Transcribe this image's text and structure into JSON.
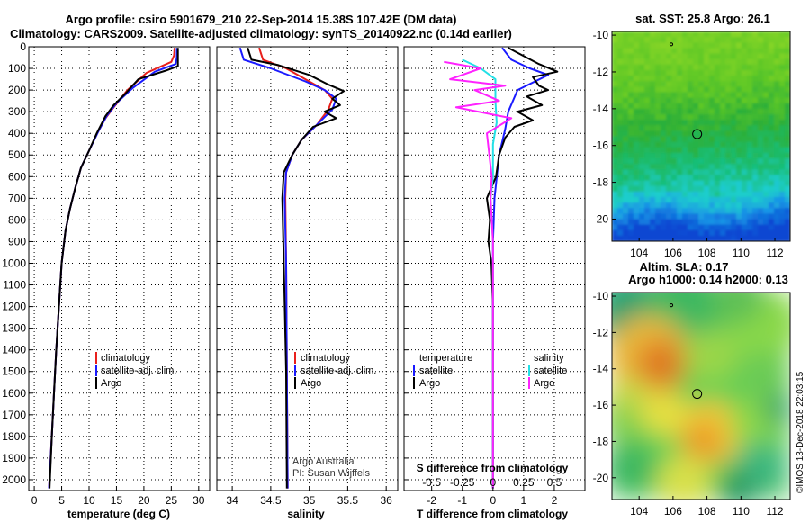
{
  "header": {
    "line1": "Argo profile: csiro 5901679_210 22-Sep-2014 15.38S 107.42E (DM data)",
    "line2": "Climatology: CARS2009. Satellite-adjusted climatology: synTS_20140922.nc (0.14d earlier)"
  },
  "credit": "©IMOS 13-Dec-2018 22:03:15",
  "colors": {
    "climatology": "#e8201c",
    "satellite": "#1a1aff",
    "argo": "#000000",
    "sat_salinity": "#22e0e6",
    "argo_salinity": "#ff22ff"
  },
  "chart_data": [
    {
      "id": "temperature",
      "type": "line",
      "xlabel": "temperature (deg C)",
      "ylabel": "",
      "xlim": [
        -1,
        32
      ],
      "ylim": [
        2050,
        0
      ],
      "xticks": [
        0,
        5,
        10,
        15,
        20,
        25,
        30
      ],
      "yticks": [
        0,
        100,
        200,
        300,
        400,
        500,
        600,
        700,
        800,
        900,
        1000,
        1100,
        1200,
        1300,
        1400,
        1500,
        1600,
        1700,
        1800,
        1900,
        2000
      ],
      "legend": [
        "climatology",
        "satellite-adj. clim.",
        "Argo"
      ],
      "series": [
        {
          "name": "climatology",
          "color": "#e8201c",
          "points": [
            [
              25.6,
              5
            ],
            [
              25.5,
              40
            ],
            [
              25,
              70
            ],
            [
              20.5,
              120
            ],
            [
              17,
              200
            ],
            [
              14.5,
              280
            ],
            [
              13,
              330
            ],
            [
              11.5,
              400
            ],
            [
              10,
              480
            ],
            [
              8.5,
              560
            ],
            [
              7.5,
              650
            ],
            [
              6.5,
              750
            ],
            [
              5.7,
              850
            ],
            [
              5,
              1000
            ],
            [
              4.5,
              1200
            ],
            [
              4,
              1400
            ],
            [
              3.6,
              1600
            ],
            [
              3.2,
              1800
            ],
            [
              2.7,
              2040
            ]
          ]
        },
        {
          "name": "satellite-adj. clim.",
          "color": "#1a1aff",
          "points": [
            [
              26,
              5
            ],
            [
              26,
              50
            ],
            [
              25.8,
              80
            ],
            [
              22,
              115
            ],
            [
              18,
              190
            ],
            [
              15,
              260
            ],
            [
              13.2,
              320
            ],
            [
              11.7,
              390
            ],
            [
              10,
              480
            ],
            [
              8.5,
              560
            ],
            [
              7.5,
              650
            ],
            [
              6.5,
              750
            ],
            [
              5.7,
              850
            ],
            [
              5,
              1000
            ],
            [
              4.5,
              1200
            ],
            [
              4,
              1400
            ],
            [
              3.6,
              1600
            ],
            [
              3.2,
              1800
            ],
            [
              2.7,
              2040
            ]
          ]
        },
        {
          "name": "Argo",
          "color": "#000000",
          "points": [
            [
              26.2,
              5
            ],
            [
              26.2,
              90
            ],
            [
              24,
              110
            ],
            [
              19,
              150
            ],
            [
              16.5,
              220
            ],
            [
              14.5,
              270
            ],
            [
              13,
              320
            ],
            [
              11.4,
              400
            ],
            [
              10,
              480
            ],
            [
              8.5,
              560
            ],
            [
              7.5,
              650
            ],
            [
              6.5,
              750
            ],
            [
              5.7,
              850
            ],
            [
              5,
              1000
            ],
            [
              4.5,
              1200
            ],
            [
              4,
              1400
            ],
            [
              3.6,
              1600
            ],
            [
              3.2,
              1800
            ],
            [
              2.8,
              2040
            ]
          ]
        }
      ]
    },
    {
      "id": "salinity",
      "type": "line",
      "xlabel": "salinity",
      "xlim": [
        33.8,
        36.15
      ],
      "ylim": [
        2050,
        0
      ],
      "xticks": [
        34,
        34.5,
        35,
        35.5,
        36
      ],
      "legend": [
        "climatology",
        "satellite-adj. clim.",
        "Argo"
      ],
      "annotation": [
        "Argo Australia",
        "PI: Susan Wijffels"
      ],
      "series": [
        {
          "name": "climatology",
          "color": "#e8201c",
          "points": [
            [
              34.35,
              5
            ],
            [
              34.4,
              60
            ],
            [
              34.7,
              100
            ],
            [
              35,
              160
            ],
            [
              35.2,
              200
            ],
            [
              35.3,
              240
            ],
            [
              35.25,
              290
            ],
            [
              35.1,
              360
            ],
            [
              34.9,
              430
            ],
            [
              34.78,
              500
            ],
            [
              34.7,
              580
            ],
            [
              34.69,
              700
            ],
            [
              34.7,
              1000
            ],
            [
              34.71,
              1500
            ],
            [
              34.72,
              2040
            ]
          ]
        },
        {
          "name": "satellite-adj. clim.",
          "color": "#1a1aff",
          "points": [
            [
              34.1,
              5
            ],
            [
              34.15,
              60
            ],
            [
              34.5,
              100
            ],
            [
              34.95,
              160
            ],
            [
              35.2,
              200
            ],
            [
              35.35,
              240
            ],
            [
              35.3,
              290
            ],
            [
              35.1,
              360
            ],
            [
              34.9,
              430
            ],
            [
              34.78,
              500
            ],
            [
              34.7,
              580
            ],
            [
              34.68,
              700
            ],
            [
              34.7,
              1000
            ],
            [
              34.71,
              1500
            ],
            [
              34.72,
              2040
            ]
          ]
        },
        {
          "name": "Argo",
          "color": "#000000",
          "points": [
            [
              34.2,
              5
            ],
            [
              34.25,
              60
            ],
            [
              34.6,
              85
            ],
            [
              35,
              130
            ],
            [
              35.25,
              175
            ],
            [
              35.45,
              205
            ],
            [
              35.3,
              240
            ],
            [
              35.4,
              270
            ],
            [
              35.2,
              300
            ],
            [
              35.35,
              330
            ],
            [
              35.05,
              370
            ],
            [
              34.9,
              430
            ],
            [
              34.78,
              500
            ],
            [
              34.67,
              580
            ],
            [
              34.65,
              700
            ],
            [
              34.67,
              1000
            ],
            [
              34.7,
              1500
            ],
            [
              34.71,
              2040
            ]
          ]
        }
      ]
    },
    {
      "id": "differences",
      "type": "line",
      "xlabel": "T difference from climatology",
      "xlabel_top": "S difference from climatology",
      "xlim": [
        -2.9,
        3.0
      ],
      "ylim": [
        2050,
        0
      ],
      "xticks": [
        -2,
        -1,
        0,
        1,
        2
      ],
      "xticks_s": [
        -0.5,
        -0.25,
        0,
        0.25,
        0.5
      ],
      "s_scale": 4,
      "legend_left_title": "temperature",
      "legend_right_title": "salinity",
      "legend": [
        "satellite",
        "Argo",
        "satellite",
        "Argo"
      ],
      "series": [
        {
          "name": "T satellite",
          "color": "#1a1aff",
          "var": "T",
          "points": [
            [
              0.3,
              5
            ],
            [
              0.6,
              60
            ],
            [
              1.2,
              100
            ],
            [
              1.8,
              130
            ],
            [
              0.8,
              200
            ],
            [
              0.5,
              300
            ],
            [
              0.4,
              380
            ],
            [
              0.2,
              500
            ],
            [
              0.05,
              700
            ],
            [
              0,
              900
            ],
            [
              0,
              1200
            ],
            [
              0,
              2040
            ]
          ]
        },
        {
          "name": "T Argo",
          "color": "#000000",
          "var": "T",
          "points": [
            [
              0.5,
              5
            ],
            [
              1.5,
              80
            ],
            [
              2.1,
              115
            ],
            [
              1.3,
              140
            ],
            [
              1.5,
              180
            ],
            [
              1.8,
              200
            ],
            [
              1.1,
              230
            ],
            [
              1.6,
              270
            ],
            [
              0.8,
              300
            ],
            [
              1.3,
              340
            ],
            [
              0.7,
              370
            ],
            [
              0.4,
              420
            ],
            [
              0.2,
              500
            ],
            [
              0.1,
              600
            ],
            [
              -0.2,
              700
            ],
            [
              -0.1,
              800
            ],
            [
              -0.15,
              900
            ],
            [
              -0.05,
              1000
            ],
            [
              0,
              1200
            ],
            [
              0,
              2040
            ]
          ]
        },
        {
          "name": "S satellite",
          "color": "#22e0e6",
          "var": "S",
          "points": [
            [
              -0.25,
              60
            ],
            [
              -0.1,
              100
            ],
            [
              0.02,
              150
            ],
            [
              0.02,
              250
            ],
            [
              0.03,
              350
            ],
            [
              0,
              450
            ],
            [
              0,
              600
            ],
            [
              -0.02,
              700
            ],
            [
              0,
              900
            ],
            [
              0,
              1200
            ],
            [
              0,
              2040
            ]
          ]
        },
        {
          "name": "S Argo",
          "color": "#ff22ff",
          "var": "S",
          "points": [
            [
              -0.4,
              70
            ],
            [
              -0.1,
              100
            ],
            [
              -0.35,
              150
            ],
            [
              0.1,
              180
            ],
            [
              -0.15,
              200
            ],
            [
              0.05,
              250
            ],
            [
              -0.3,
              280
            ],
            [
              0.15,
              330
            ],
            [
              -0.05,
              400
            ],
            [
              -0.03,
              500
            ],
            [
              -0.01,
              600
            ],
            [
              -0.02,
              700
            ],
            [
              0,
              900
            ],
            [
              0,
              1200
            ],
            [
              0,
              2040
            ]
          ]
        }
      ]
    },
    {
      "id": "sst-map",
      "type": "heatmap",
      "title": "sat. SST: 25.8 Argo: 26.1",
      "xlim": [
        102.4,
        112.9
      ],
      "ylim": [
        -21.2,
        -9.8
      ],
      "xticks": [
        104,
        106,
        108,
        110,
        112
      ],
      "yticks": [
        -10,
        -12,
        -14,
        -16,
        -18,
        -20
      ],
      "marker": {
        "lon": 107.42,
        "lat": -15.38
      },
      "marker_small": {
        "lon": 105.9,
        "lat": -10.5
      }
    },
    {
      "id": "sla-map",
      "type": "heatmap",
      "title": "Altim. SLA: 0.17",
      "subtitle": "Argo h1000: 0.14 h2000: 0.13",
      "xlim": [
        102.4,
        112.9
      ],
      "ylim": [
        -21.2,
        -9.8
      ],
      "xticks": [
        104,
        106,
        108,
        110,
        112
      ],
      "yticks": [
        -10,
        -12,
        -14,
        -16,
        -18,
        -20
      ],
      "marker": {
        "lon": 107.42,
        "lat": -15.38
      },
      "marker_small": {
        "lon": 105.9,
        "lat": -10.5
      }
    }
  ]
}
